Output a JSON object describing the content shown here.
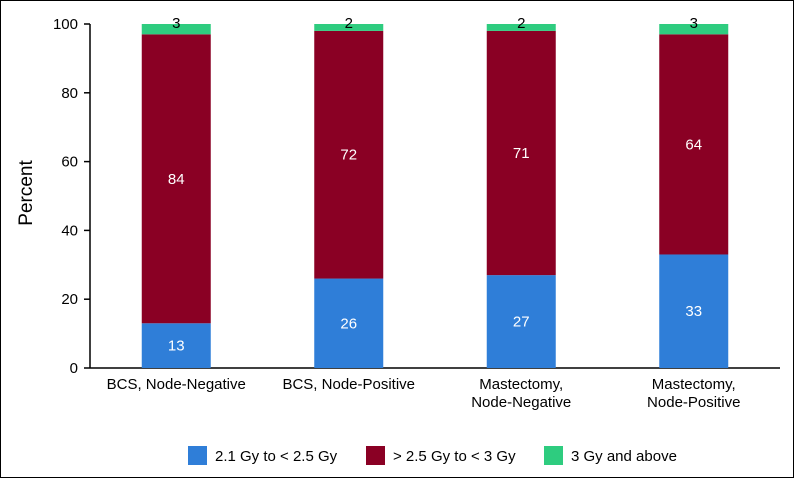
{
  "chart_data": {
    "type": "bar",
    "stacked": true,
    "title": "",
    "xlabel": "",
    "ylabel": "Percent",
    "ylim": [
      0,
      100
    ],
    "yticks": [
      0,
      20,
      40,
      60,
      80,
      100
    ],
    "grid": false,
    "legend_position": "bottom",
    "categories": [
      [
        "BCS, Node-Negative"
      ],
      [
        "BCS, Node-Positive"
      ],
      [
        "Mastectomy,",
        "Node-Negative"
      ],
      [
        "Mastectomy,",
        "Node-Positive"
      ]
    ],
    "series": [
      {
        "name": "2.1 Gy to < 2.5 Gy",
        "color": "#2f7ed8",
        "label_color": "#ffffff",
        "values": [
          13,
          26,
          27,
          33
        ]
      },
      {
        "name": "> 2.5 Gy to < 3 Gy",
        "color": "#8a0024",
        "label_color": "#ffffff",
        "values": [
          84,
          72,
          71,
          64
        ]
      },
      {
        "name": "3 Gy and above",
        "color": "#2ecc7f",
        "label_color": "#000000",
        "values": [
          3,
          2,
          2,
          3
        ]
      }
    ]
  }
}
